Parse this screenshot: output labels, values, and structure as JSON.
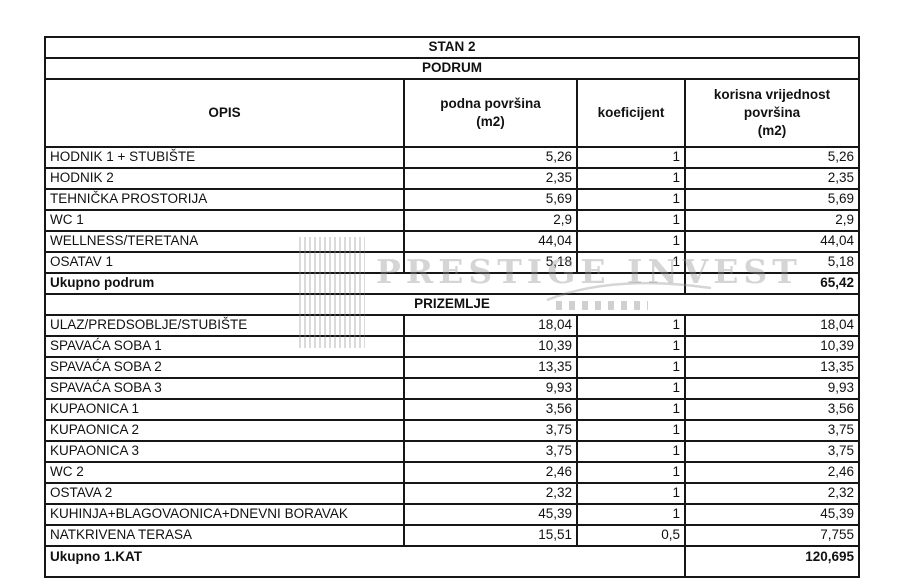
{
  "table": {
    "title": "STAN 2",
    "columns": [
      "OPIS",
      "podna površina\n(m2)",
      "koeficijent",
      "korisna vrijednost\npovršina\n(m2)"
    ],
    "sections": [
      {
        "name": "PODRUM",
        "rows": [
          {
            "opis": "HODNIK 1 + STUBIŠTE",
            "podna": "5,26",
            "koef": "1",
            "korisna": "5,26"
          },
          {
            "opis": "HODNIK 2",
            "podna": "2,35",
            "koef": "1",
            "korisna": "2,35"
          },
          {
            "opis": "TEHNIČKA PROSTORIJA",
            "podna": "5,69",
            "koef": "1",
            "korisna": "5,69"
          },
          {
            "opis": "WC 1",
            "podna": "2,9",
            "koef": "1",
            "korisna": "2,9"
          },
          {
            "opis": "WELLNESS/TERETANA",
            "podna": "44,04",
            "koef": "1",
            "korisna": "44,04"
          },
          {
            "opis": "OSATAV 1",
            "podna": "5,18",
            "koef": "1",
            "korisna": "5,18"
          }
        ],
        "total_label": "Ukupno podrum",
        "total_value": "65,42"
      },
      {
        "name": "PRIZEMLJE",
        "rows": [
          {
            "opis": "ULAZ/PREDSOBLJE/STUBIŠTE",
            "podna": "18,04",
            "koef": "1",
            "korisna": "18,04"
          },
          {
            "opis": "SPAVAĆA SOBA 1",
            "podna": "10,39",
            "koef": "1",
            "korisna": "10,39"
          },
          {
            "opis": "SPAVAĆA SOBA 2",
            "podna": "13,35",
            "koef": "1",
            "korisna": "13,35"
          },
          {
            "opis": "SPAVAĆA SOBA 3",
            "podna": "9,93",
            "koef": "1",
            "korisna": "9,93"
          },
          {
            "opis": "KUPAONICA 1",
            "podna": "3,56",
            "koef": "1",
            "korisna": "3,56"
          },
          {
            "opis": "KUPAONICA 2",
            "podna": "3,75",
            "koef": "1",
            "korisna": "3,75"
          },
          {
            "opis": "KUPAONICA 3",
            "podna": "3,75",
            "koef": "1",
            "korisna": "3,75"
          },
          {
            "opis": "WC 2",
            "podna": "2,46",
            "koef": "1",
            "korisna": "2,46"
          },
          {
            "opis": "OSTAVA 2",
            "podna": "2,32",
            "koef": "1",
            "korisna": "2,32"
          },
          {
            "opis": "KUHINJA+BLAGOVAONICA+DNEVNI BORAVAK",
            "podna": "45,39",
            "koef": "1",
            "korisna": "45,39"
          },
          {
            "opis": "NATKRIVENA TERASA",
            "podna": "15,51",
            "koef": "0,5",
            "korisna": "7,755"
          }
        ],
        "total_label": "Ukupno 1.KAT",
        "total_value": "120,695"
      }
    ]
  },
  "watermark": {
    "text": "PRESTIGE INVEST"
  }
}
